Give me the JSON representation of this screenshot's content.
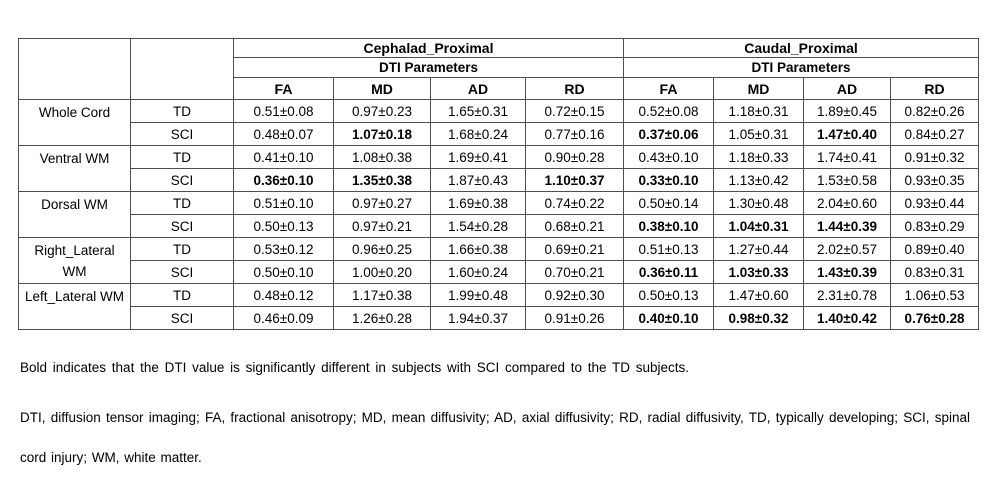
{
  "table": {
    "col_groups": [
      {
        "title": "Cephalad_Proximal",
        "subtitle": "DTI Parameters",
        "params": [
          "FA",
          "MD",
          "AD",
          "RD"
        ]
      },
      {
        "title": "Caudal_Proximal",
        "subtitle": "DTI Parameters",
        "params": [
          "FA",
          "MD",
          "AD",
          "RD"
        ]
      }
    ],
    "row_groups": [
      {
        "region": "Whole Cord",
        "rows": [
          {
            "cohort": "TD",
            "cells": [
              {
                "v": "0.51±0.08",
                "b": false
              },
              {
                "v": "0.97±0.23",
                "b": false
              },
              {
                "v": "1.65±0.31",
                "b": false
              },
              {
                "v": "0.72±0.15",
                "b": false
              },
              {
                "v": "0.52±0.08",
                "b": false
              },
              {
                "v": "1.18±0.31",
                "b": false
              },
              {
                "v": "1.89±0.45",
                "b": false
              },
              {
                "v": "0.82±0.26",
                "b": false
              }
            ]
          },
          {
            "cohort": "SCI",
            "cells": [
              {
                "v": "0.48±0.07",
                "b": false
              },
              {
                "v": "1.07±0.18",
                "b": true
              },
              {
                "v": "1.68±0.24",
                "b": false
              },
              {
                "v": "0.77±0.16",
                "b": false
              },
              {
                "v": "0.37±0.06",
                "b": true
              },
              {
                "v": "1.05±0.31",
                "b": false
              },
              {
                "v": "1.47±0.40",
                "b": true
              },
              {
                "v": "0.84±0.27",
                "b": false
              }
            ]
          }
        ]
      },
      {
        "region": "Ventral WM",
        "rows": [
          {
            "cohort": "TD",
            "cells": [
              {
                "v": "0.41±0.10",
                "b": false
              },
              {
                "v": "1.08±0.38",
                "b": false
              },
              {
                "v": "1.69±0.41",
                "b": false
              },
              {
                "v": "0.90±0.28",
                "b": false
              },
              {
                "v": "0.43±0.10",
                "b": false
              },
              {
                "v": "1.18±0.33",
                "b": false
              },
              {
                "v": "1.74±0.41",
                "b": false
              },
              {
                "v": "0.91±0.32",
                "b": false
              }
            ]
          },
          {
            "cohort": "SCI",
            "cells": [
              {
                "v": "0.36±0.10",
                "b": true
              },
              {
                "v": "1.35±0.38",
                "b": true
              },
              {
                "v": "1.87±0.43",
                "b": false
              },
              {
                "v": "1.10±0.37",
                "b": true
              },
              {
                "v": "0.33±0.10",
                "b": true
              },
              {
                "v": "1.13±0.42",
                "b": false
              },
              {
                "v": "1.53±0.58",
                "b": false
              },
              {
                "v": "0.93±0.35",
                "b": false
              }
            ]
          }
        ]
      },
      {
        "region": "Dorsal WM",
        "rows": [
          {
            "cohort": "TD",
            "cells": [
              {
                "v": "0.51±0.10",
                "b": false
              },
              {
                "v": "0.97±0.27",
                "b": false
              },
              {
                "v": "1.69±0.38",
                "b": false
              },
              {
                "v": "0.74±0.22",
                "b": false
              },
              {
                "v": "0.50±0.14",
                "b": false
              },
              {
                "v": "1.30±0.48",
                "b": false
              },
              {
                "v": "2.04±0.60",
                "b": false
              },
              {
                "v": "0.93±0.44",
                "b": false
              }
            ]
          },
          {
            "cohort": "SCI",
            "cells": [
              {
                "v": "0.50±0.13",
                "b": false
              },
              {
                "v": "0.97±0.21",
                "b": false
              },
              {
                "v": "1.54±0.28",
                "b": false
              },
              {
                "v": "0.68±0.21",
                "b": false
              },
              {
                "v": "0.38±0.10",
                "b": true
              },
              {
                "v": "1.04±0.31",
                "b": true
              },
              {
                "v": "1.44±0.39",
                "b": true
              },
              {
                "v": "0.83±0.29",
                "b": false
              }
            ]
          }
        ]
      },
      {
        "region": "Right_Lateral WM",
        "rows": [
          {
            "cohort": "TD",
            "cells": [
              {
                "v": "0.53±0.12",
                "b": false
              },
              {
                "v": "0.96±0.25",
                "b": false
              },
              {
                "v": "1.66±0.38",
                "b": false
              },
              {
                "v": "0.69±0.21",
                "b": false
              },
              {
                "v": "0.51±0.13",
                "b": false
              },
              {
                "v": "1.27±0.44",
                "b": false
              },
              {
                "v": "2.02±0.57",
                "b": false
              },
              {
                "v": "0.89±0.40",
                "b": false
              }
            ]
          },
          {
            "cohort": "SCI",
            "cells": [
              {
                "v": "0.50±0.10",
                "b": false
              },
              {
                "v": "1.00±0.20",
                "b": false
              },
              {
                "v": "1.60±0.24",
                "b": false
              },
              {
                "v": "0.70±0.21",
                "b": false
              },
              {
                "v": "0.36±0.11",
                "b": true
              },
              {
                "v": "1.03±0.33",
                "b": true
              },
              {
                "v": "1.43±0.39",
                "b": true
              },
              {
                "v": "0.83±0.31",
                "b": false
              }
            ]
          }
        ]
      },
      {
        "region": "Left_Lateral WM",
        "rows": [
          {
            "cohort": "TD",
            "cells": [
              {
                "v": "0.48±0.12",
                "b": false
              },
              {
                "v": "1.17±0.38",
                "b": false
              },
              {
                "v": "1.99±0.48",
                "b": false
              },
              {
                "v": "0.92±0.30",
                "b": false
              },
              {
                "v": "0.50±0.13",
                "b": false
              },
              {
                "v": "1.47±0.60",
                "b": false
              },
              {
                "v": "2.31±0.78",
                "b": false
              },
              {
                "v": "1.06±0.53",
                "b": false
              }
            ]
          },
          {
            "cohort": "SCI",
            "cells": [
              {
                "v": "0.46±0.09",
                "b": false
              },
              {
                "v": "1.26±0.28",
                "b": false
              },
              {
                "v": "1.94±0.37",
                "b": false
              },
              {
                "v": "0.91±0.26",
                "b": false
              },
              {
                "v": "0.40±0.10",
                "b": true
              },
              {
                "v": "0.98±0.32",
                "b": true
              },
              {
                "v": "1.40±0.42",
                "b": true
              },
              {
                "v": "0.76±0.28",
                "b": true
              }
            ]
          }
        ]
      }
    ]
  },
  "notes": {
    "significance": "Bold indicates that the DTI value is significantly different in subjects with SCI compared to the TD subjects.",
    "abbreviations": "DTI, diffusion tensor imaging; FA, fractional anisotropy; MD, mean diffusivity; AD, axial diffusivity; RD, radial diffusivity, TD, typically developing; SCI, spinal cord injury; WM, white matter."
  }
}
